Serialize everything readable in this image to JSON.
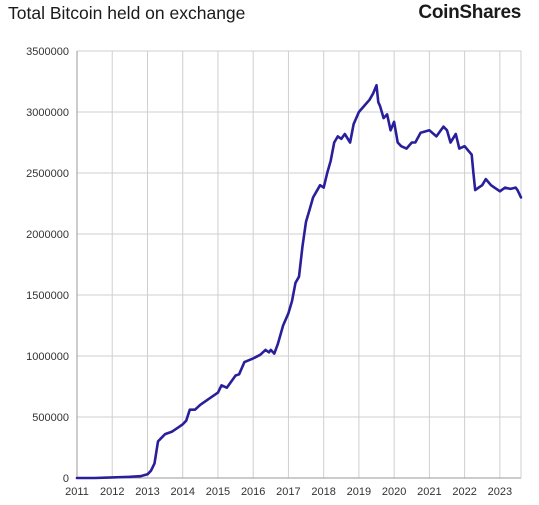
{
  "header": {
    "title": "Total Bitcoin held on exchange",
    "brand": "CoinShares"
  },
  "colors": {
    "line": "#2a1f9a",
    "grid": "#cfcfcf",
    "axis": "#999999"
  },
  "chart_data": {
    "type": "line",
    "title": "Total Bitcoin held on exchange",
    "xlabel": "",
    "ylabel": "",
    "grid": true,
    "legend": "none",
    "xlim": [
      2011.0,
      2023.6
    ],
    "ylim": [
      0,
      3500000
    ],
    "x_ticks": [
      "2011",
      "2012",
      "2013",
      "2014",
      "2015",
      "2016",
      "2017",
      "2018",
      "2019",
      "2020",
      "2021",
      "2022",
      "2023"
    ],
    "y_ticks": [
      0,
      500000,
      1000000,
      1500000,
      2000000,
      2500000,
      3000000,
      3500000
    ],
    "series": [
      {
        "name": "",
        "x": [
          2011.0,
          2011.5,
          2012.0,
          2012.5,
          2012.8,
          2013.0,
          2013.1,
          2013.2,
          2013.3,
          2013.4,
          2013.5,
          2013.7,
          2013.9,
          2014.0,
          2014.1,
          2014.2,
          2014.35,
          2014.5,
          2014.75,
          2015.0,
          2015.1,
          2015.25,
          2015.5,
          2015.6,
          2015.75,
          2016.0,
          2016.2,
          2016.35,
          2016.45,
          2016.5,
          2016.6,
          2016.7,
          2016.85,
          2017.0,
          2017.1,
          2017.2,
          2017.3,
          2017.4,
          2017.5,
          2017.6,
          2017.7,
          2017.8,
          2017.9,
          2018.0,
          2018.1,
          2018.2,
          2018.3,
          2018.4,
          2018.5,
          2018.6,
          2018.75,
          2018.85,
          2019.0,
          2019.15,
          2019.3,
          2019.4,
          2019.5,
          2019.55,
          2019.6,
          2019.7,
          2019.8,
          2019.9,
          2020.0,
          2020.1,
          2020.2,
          2020.35,
          2020.5,
          2020.6,
          2020.75,
          2021.0,
          2021.2,
          2021.4,
          2021.5,
          2021.6,
          2021.75,
          2021.85,
          2022.0,
          2022.2,
          2022.25,
          2022.3,
          2022.4,
          2022.5,
          2022.6,
          2022.75,
          2023.0,
          2023.15,
          2023.3,
          2023.45,
          2023.5,
          2023.6
        ],
        "y": [
          0,
          0,
          5000,
          10000,
          15000,
          30000,
          60000,
          120000,
          300000,
          330000,
          360000,
          380000,
          420000,
          440000,
          470000,
          560000,
          560000,
          600000,
          650000,
          700000,
          760000,
          740000,
          840000,
          850000,
          950000,
          980000,
          1010000,
          1050000,
          1030000,
          1050000,
          1020000,
          1100000,
          1250000,
          1350000,
          1450000,
          1600000,
          1650000,
          1900000,
          2100000,
          2200000,
          2300000,
          2350000,
          2400000,
          2380000,
          2500000,
          2600000,
          2750000,
          2800000,
          2780000,
          2820000,
          2750000,
          2900000,
          3000000,
          3050000,
          3100000,
          3150000,
          3220000,
          3080000,
          3050000,
          2950000,
          2980000,
          2850000,
          2920000,
          2750000,
          2720000,
          2700000,
          2750000,
          2750000,
          2830000,
          2850000,
          2800000,
          2880000,
          2850000,
          2750000,
          2820000,
          2700000,
          2720000,
          2650000,
          2500000,
          2360000,
          2380000,
          2400000,
          2450000,
          2400000,
          2350000,
          2380000,
          2370000,
          2380000,
          2360000,
          2300000
        ]
      }
    ]
  }
}
